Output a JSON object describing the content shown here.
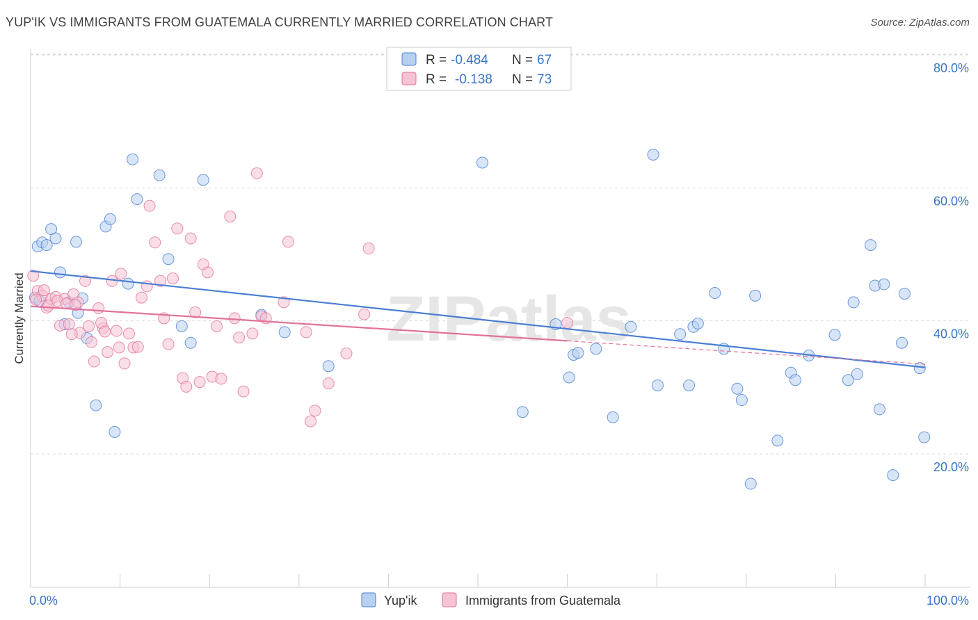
{
  "title": "YUP'IK VS IMMIGRANTS FROM GUATEMALA CURRENTLY MARRIED CORRELATION CHART",
  "source": "Source: ZipAtlas.com",
  "watermark": "ZIPatlas",
  "legend": {
    "r_label": "R =",
    "n_label": "N =",
    "rows": [
      {
        "r": "-0.484",
        "n": "67"
      },
      {
        "r": "-0.138",
        "n": "73"
      }
    ]
  },
  "colors": {
    "blue": "#4a7fd4",
    "blue_fill": "#b8d0f0",
    "pink": "#e2729a",
    "pink_fill": "#f6c3d3",
    "grid": "#d8d8d8"
  },
  "chart_data": {
    "type": "scatter",
    "xlabel": "",
    "ylabel": "Currently Married",
    "x_tick_labels": [
      "0.0%",
      "100.0%"
    ],
    "y_tick_labels": [
      "20.0%",
      "40.0%",
      "60.0%",
      "80.0%"
    ],
    "y_ticks": [
      20,
      40,
      60,
      80
    ],
    "xlim": [
      0,
      100
    ],
    "ylim": [
      0,
      83
    ],
    "grid": true,
    "legend_position": "top-center",
    "series": [
      {
        "name": "Yup'ik",
        "color": "#4a7fd4",
        "trend": [
          [
            0,
            47.5
          ],
          [
            100,
            33.0
          ]
        ],
        "trend_dashed": [],
        "points": [
          [
            0.5,
            43.5
          ],
          [
            0.8,
            51.2
          ],
          [
            1.3,
            51.8
          ],
          [
            1.8,
            51.4
          ],
          [
            2.3,
            53.8
          ],
          [
            2.8,
            52.4
          ],
          [
            3.3,
            47.3
          ],
          [
            3.8,
            39.5
          ],
          [
            4.3,
            42.8
          ],
          [
            5.1,
            51.9
          ],
          [
            5.3,
            41.2
          ],
          [
            5.8,
            43.4
          ],
          [
            6.3,
            37.4
          ],
          [
            7.3,
            27.3
          ],
          [
            8.4,
            54.2
          ],
          [
            8.9,
            55.3
          ],
          [
            9.4,
            23.3
          ],
          [
            10.9,
            45.6
          ],
          [
            11.4,
            64.3
          ],
          [
            11.9,
            58.3
          ],
          [
            14.4,
            61.9
          ],
          [
            15.4,
            49.3
          ],
          [
            16.9,
            39.2
          ],
          [
            17.9,
            36.7
          ],
          [
            19.3,
            61.2
          ],
          [
            25.8,
            40.9
          ],
          [
            28.4,
            38.3
          ],
          [
            33.3,
            33.2
          ],
          [
            50.5,
            63.8
          ],
          [
            55.0,
            26.3
          ],
          [
            58.7,
            39.5
          ],
          [
            60.2,
            31.5
          ],
          [
            60.7,
            34.9
          ],
          [
            61.2,
            35.2
          ],
          [
            63.2,
            35.8
          ],
          [
            65.1,
            25.5
          ],
          [
            67.1,
            39.1
          ],
          [
            69.6,
            65.0
          ],
          [
            70.1,
            30.3
          ],
          [
            72.6,
            38.0
          ],
          [
            73.6,
            30.3
          ],
          [
            74.1,
            39.1
          ],
          [
            74.6,
            39.6
          ],
          [
            76.5,
            44.2
          ],
          [
            77.5,
            35.8
          ],
          [
            79.0,
            29.8
          ],
          [
            79.5,
            28.1
          ],
          [
            80.5,
            15.5
          ],
          [
            81.0,
            43.8
          ],
          [
            83.5,
            22.0
          ],
          [
            85.0,
            32.2
          ],
          [
            85.5,
            31.1
          ],
          [
            87.0,
            34.8
          ],
          [
            89.9,
            37.9
          ],
          [
            91.4,
            31.1
          ],
          [
            92.4,
            32.0
          ],
          [
            93.9,
            51.4
          ],
          [
            92.0,
            42.8
          ],
          [
            94.4,
            45.3
          ],
          [
            94.9,
            26.7
          ],
          [
            95.4,
            45.5
          ],
          [
            96.4,
            16.8
          ],
          [
            97.4,
            36.7
          ],
          [
            97.7,
            44.1
          ],
          [
            99.4,
            32.9
          ],
          [
            99.9,
            22.5
          ],
          [
            1.0,
            43.0
          ]
        ]
      },
      {
        "name": "Immigrants from Guatemala",
        "color": "#e2729a",
        "trend": [
          [
            0,
            42.2
          ],
          [
            60,
            37.0
          ]
        ],
        "trend_dashed": [
          [
            60,
            37.0
          ],
          [
            100,
            33.5
          ]
        ],
        "points": [
          [
            0.3,
            46.8
          ],
          [
            0.8,
            44.5
          ],
          [
            1.3,
            43.8
          ],
          [
            1.8,
            42.0
          ],
          [
            2.3,
            43.3
          ],
          [
            2.8,
            43.6
          ],
          [
            3.3,
            39.3
          ],
          [
            3.8,
            43.3
          ],
          [
            4.3,
            39.5
          ],
          [
            4.8,
            44.0
          ],
          [
            5.3,
            42.8
          ],
          [
            5.5,
            38.2
          ],
          [
            6.1,
            46.0
          ],
          [
            6.5,
            39.2
          ],
          [
            6.8,
            36.8
          ],
          [
            7.1,
            33.9
          ],
          [
            7.6,
            41.9
          ],
          [
            8.1,
            38.9
          ],
          [
            8.6,
            35.3
          ],
          [
            9.1,
            46.0
          ],
          [
            9.6,
            38.5
          ],
          [
            10.1,
            47.1
          ],
          [
            10.5,
            33.6
          ],
          [
            11.0,
            38.1
          ],
          [
            11.5,
            36.0
          ],
          [
            12.0,
            36.1
          ],
          [
            12.4,
            43.5
          ],
          [
            13.0,
            45.2
          ],
          [
            13.3,
            57.3
          ],
          [
            13.9,
            51.8
          ],
          [
            14.5,
            46.0
          ],
          [
            14.9,
            40.4
          ],
          [
            15.4,
            36.5
          ],
          [
            15.9,
            46.4
          ],
          [
            16.4,
            53.9
          ],
          [
            17.0,
            31.4
          ],
          [
            17.4,
            30.1
          ],
          [
            17.9,
            52.4
          ],
          [
            18.4,
            41.3
          ],
          [
            18.9,
            30.8
          ],
          [
            19.3,
            48.5
          ],
          [
            19.8,
            47.3
          ],
          [
            20.3,
            31.6
          ],
          [
            20.8,
            39.2
          ],
          [
            21.3,
            31.3
          ],
          [
            22.3,
            55.7
          ],
          [
            22.8,
            40.4
          ],
          [
            23.3,
            37.5
          ],
          [
            23.8,
            29.4
          ],
          [
            24.8,
            38.1
          ],
          [
            25.3,
            62.2
          ],
          [
            25.8,
            40.7
          ],
          [
            26.3,
            40.4
          ],
          [
            28.3,
            42.8
          ],
          [
            28.8,
            51.9
          ],
          [
            30.8,
            38.3
          ],
          [
            31.3,
            24.9
          ],
          [
            31.8,
            26.5
          ],
          [
            33.3,
            30.6
          ],
          [
            35.3,
            35.1
          ],
          [
            37.3,
            41.0
          ],
          [
            37.8,
            50.9
          ],
          [
            60.0,
            39.7
          ],
          [
            0.6,
            43.2
          ],
          [
            1.5,
            44.6
          ],
          [
            2.0,
            42.3
          ],
          [
            3.0,
            43.0
          ],
          [
            4.0,
            42.6
          ],
          [
            4.6,
            38.0
          ],
          [
            5.0,
            42.4
          ],
          [
            7.9,
            39.7
          ],
          [
            8.3,
            38.4
          ],
          [
            9.9,
            36.0
          ]
        ]
      }
    ]
  },
  "bottom_legend": [
    {
      "label": "Yup'ik"
    },
    {
      "label": "Immigrants from Guatemala"
    }
  ]
}
